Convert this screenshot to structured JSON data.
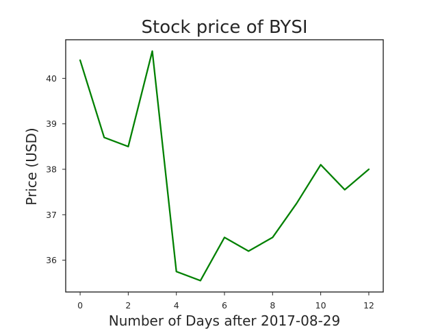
{
  "chart_data": {
    "type": "line",
    "title": "Stock price of BYSI",
    "xlabel": "Number of Days after 2017-08-29",
    "ylabel": "Price (USD)",
    "xlim": [
      -0.6,
      12.6
    ],
    "ylim": [
      35.3,
      40.85
    ],
    "xticks": [
      0,
      2,
      4,
      6,
      8,
      10,
      12
    ],
    "yticks": [
      36,
      37,
      38,
      39,
      40
    ],
    "grid": false,
    "line_color": "#008000",
    "series": [
      {
        "x": [
          0,
          1,
          2,
          3,
          4,
          5,
          6,
          7,
          8,
          9,
          10,
          11,
          12
        ],
        "values": [
          40.4,
          38.7,
          38.5,
          40.6,
          35.75,
          35.55,
          36.5,
          36.2,
          36.5,
          37.25,
          38.1,
          37.55,
          38.0
        ]
      }
    ]
  }
}
